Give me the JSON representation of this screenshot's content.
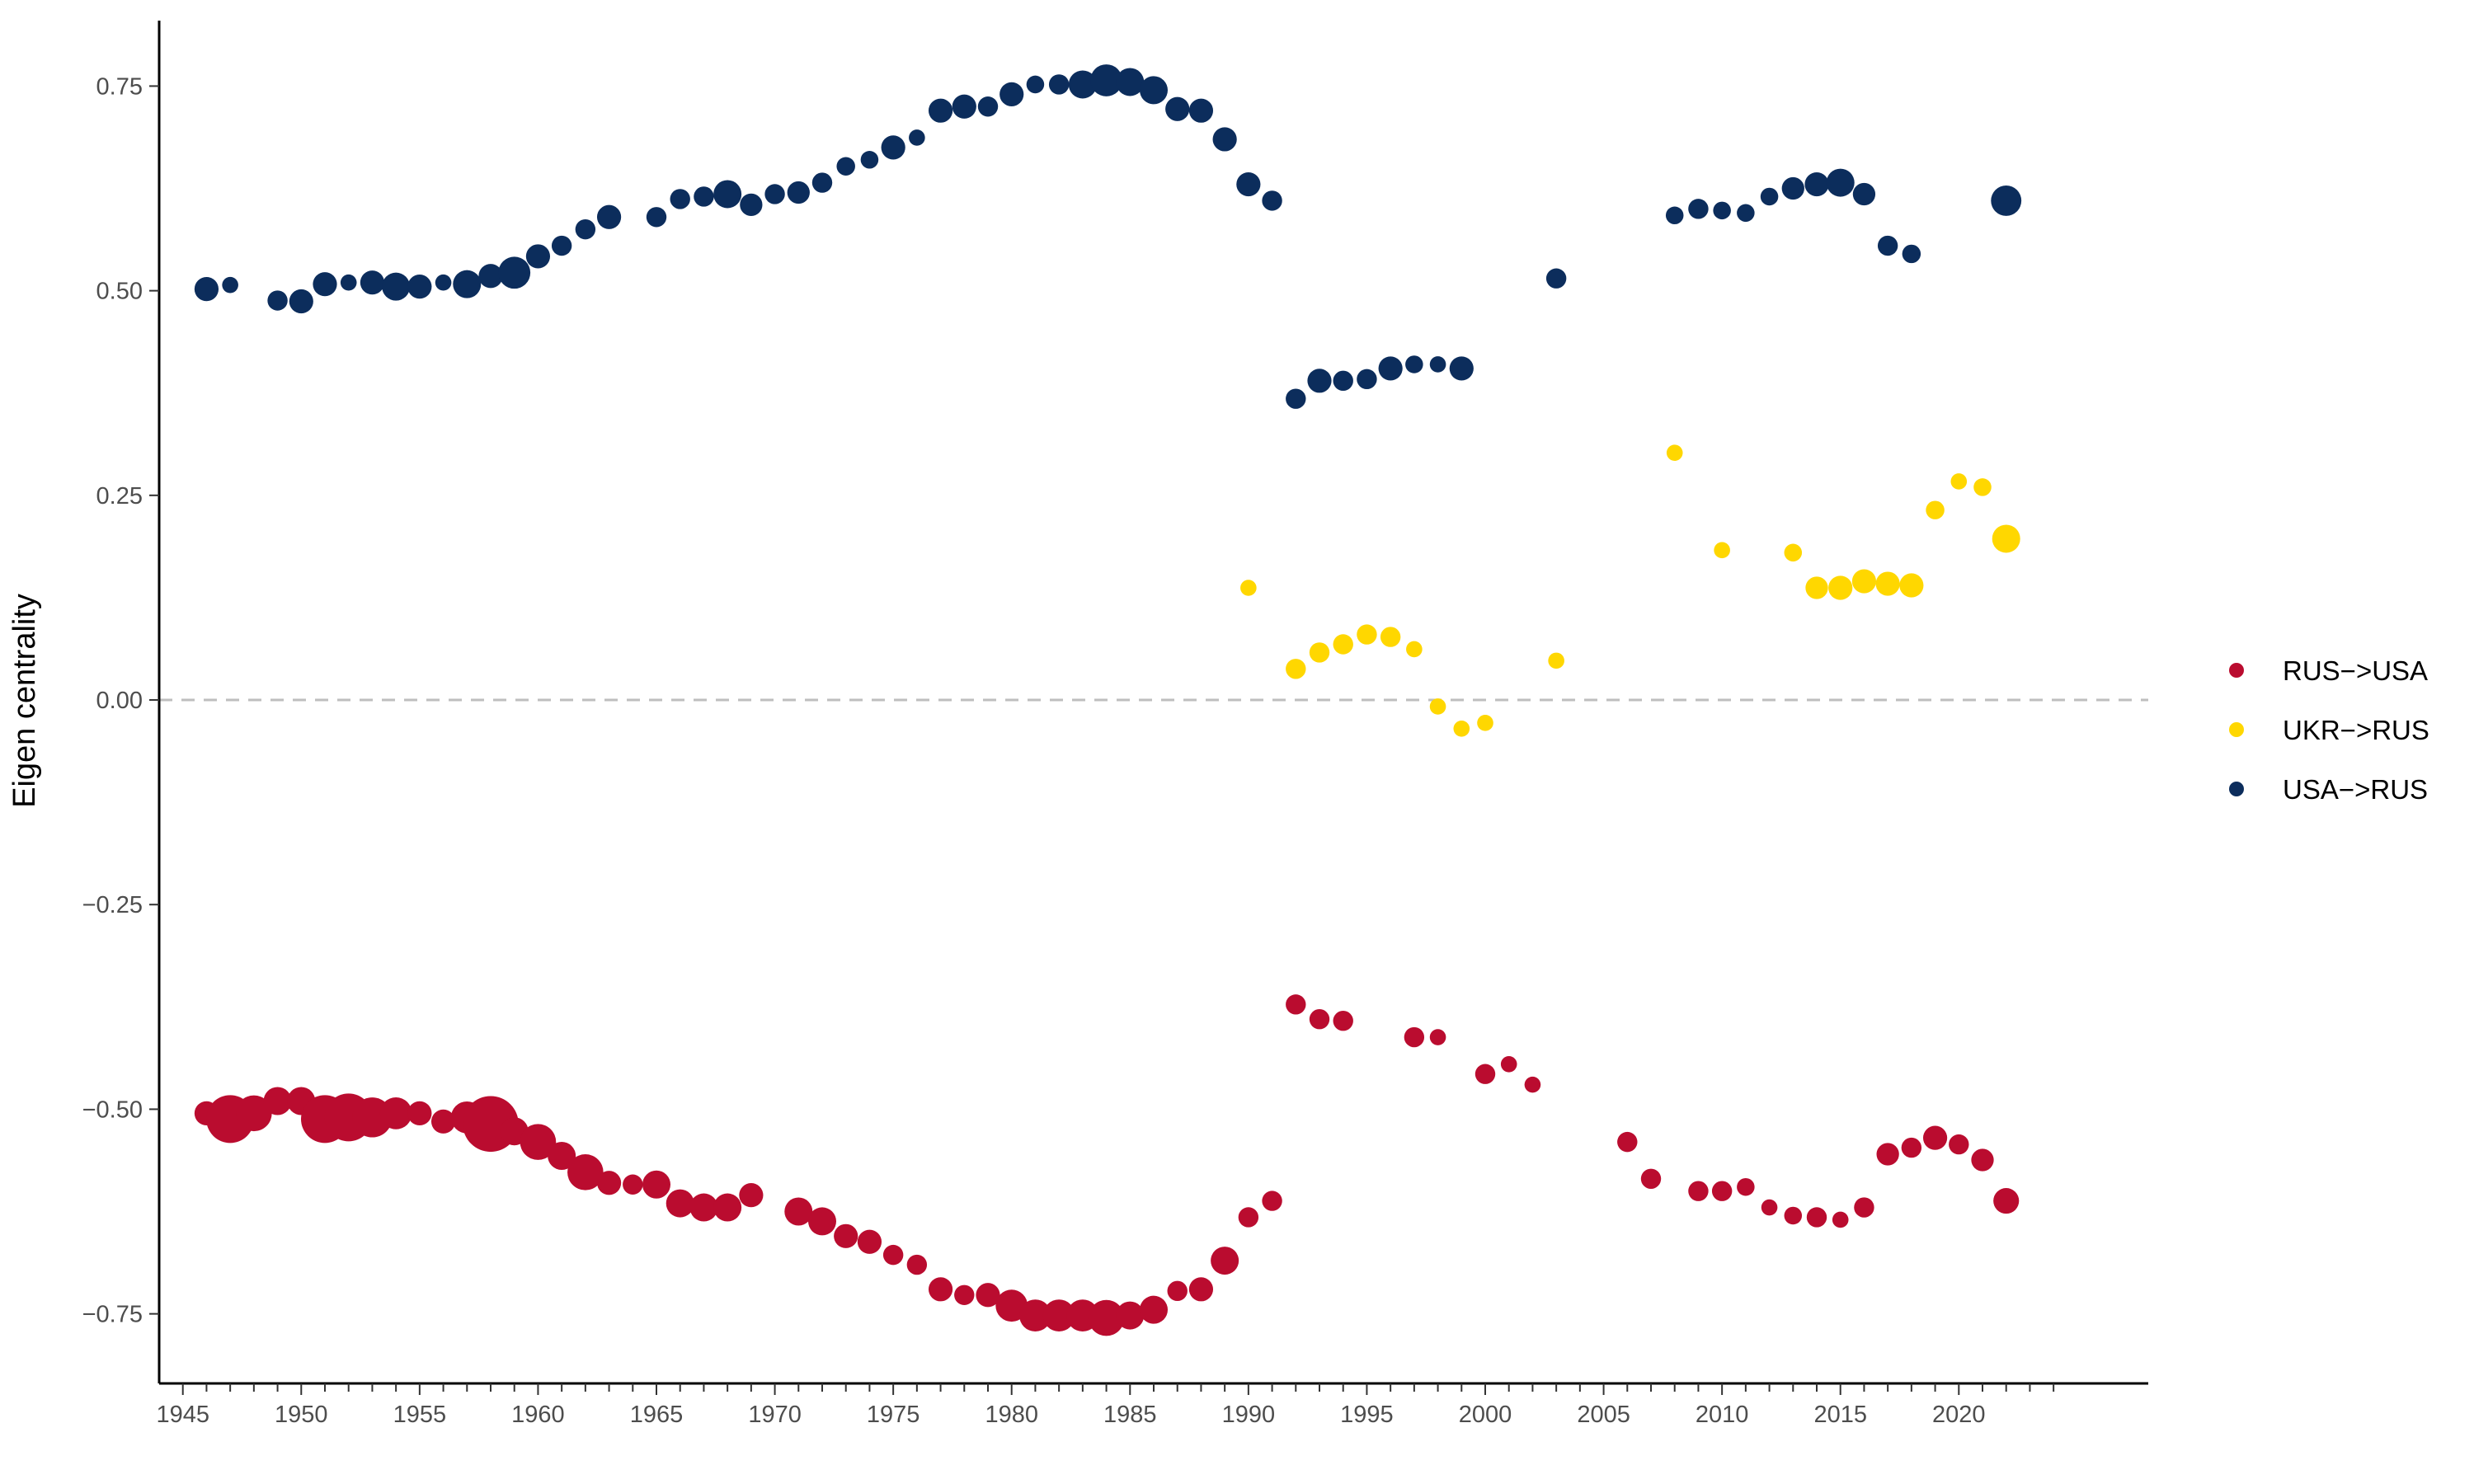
{
  "chart_data": {
    "type": "scatter",
    "title": "",
    "xlabel": "",
    "ylabel": "Eigen centrality",
    "xlim": [
      1944,
      2028
    ],
    "ylim": [
      -0.835,
      0.83
    ],
    "x_ticks": [
      1945,
      1950,
      1955,
      1960,
      1965,
      1970,
      1975,
      1980,
      1985,
      1990,
      1995,
      2000,
      2005,
      2010,
      2015,
      2020
    ],
    "x_ticks_minor": [
      1946,
      1947,
      1948,
      1949,
      1951,
      1952,
      1953,
      1954,
      1956,
      1957,
      1958,
      1959,
      1961,
      1962,
      1963,
      1964,
      1966,
      1967,
      1968,
      1969,
      1971,
      1972,
      1973,
      1974,
      1976,
      1977,
      1978,
      1979,
      1981,
      1982,
      1983,
      1984,
      1986,
      1987,
      1988,
      1989,
      1991,
      1992,
      1993,
      1994,
      1996,
      1997,
      1998,
      1999,
      2001,
      2002,
      2003,
      2004,
      2006,
      2007,
      2008,
      2009,
      2011,
      2012,
      2013,
      2014,
      2016,
      2017,
      2018,
      2019,
      2021,
      2022,
      2023,
      2024
    ],
    "y_ticks": [
      0.75,
      0.5,
      0.25,
      0.0,
      -0.25,
      -0.5,
      -0.75
    ],
    "y_tick_labels": [
      "0.75",
      "0.50",
      "0.25",
      "0.00",
      "−0.25",
      "−0.50",
      "−0.75"
    ],
    "reference_line": 0,
    "grid": false,
    "legend_position": "right",
    "point_size_encoding": "relative size value (unlabeled)",
    "series": [
      {
        "name": "RUS−>USA",
        "color": "#BA0C2F",
        "points": [
          [
            1946,
            -0.505,
            2
          ],
          [
            1947,
            -0.512,
            5
          ],
          [
            1948,
            -0.505,
            3.5
          ],
          [
            1949,
            -0.49,
            2.5
          ],
          [
            1950,
            -0.49,
            2.5
          ],
          [
            1951,
            -0.512,
            5
          ],
          [
            1952,
            -0.51,
            5
          ],
          [
            1953,
            -0.51,
            4
          ],
          [
            1954,
            -0.505,
            3
          ],
          [
            1955,
            -0.505,
            2
          ],
          [
            1956,
            -0.515,
            2
          ],
          [
            1957,
            -0.51,
            3
          ],
          [
            1958,
            -0.518,
            6
          ],
          [
            1959,
            -0.527,
            2.5
          ],
          [
            1960,
            -0.54,
            3.5
          ],
          [
            1961,
            -0.557,
            2.5
          ],
          [
            1962,
            -0.577,
            3.5
          ],
          [
            1963,
            -0.59,
            2
          ],
          [
            1964,
            -0.592,
            1.5
          ],
          [
            1965,
            -0.592,
            2.5
          ],
          [
            1966,
            -0.615,
            2.5
          ],
          [
            1967,
            -0.62,
            2.5
          ],
          [
            1968,
            -0.62,
            2.5
          ],
          [
            1969,
            -0.605,
            2
          ],
          [
            1971,
            -0.625,
            2.5
          ],
          [
            1972,
            -0.637,
            2.5
          ],
          [
            1973,
            -0.655,
            2
          ],
          [
            1974,
            -0.662,
            2
          ],
          [
            1975,
            -0.678,
            1.5
          ],
          [
            1976,
            -0.69,
            1.5
          ],
          [
            1977,
            -0.72,
            2
          ],
          [
            1978,
            -0.727,
            1.5
          ],
          [
            1979,
            -0.727,
            2
          ],
          [
            1980,
            -0.74,
            3
          ],
          [
            1981,
            -0.752,
            3
          ],
          [
            1982,
            -0.752,
            3
          ],
          [
            1983,
            -0.752,
            3
          ],
          [
            1984,
            -0.755,
            3.5
          ],
          [
            1985,
            -0.752,
            2.5
          ],
          [
            1986,
            -0.745,
            2.5
          ],
          [
            1987,
            -0.722,
            1.5
          ],
          [
            1988,
            -0.72,
            2
          ],
          [
            1989,
            -0.685,
            2.5
          ],
          [
            1990,
            -0.632,
            1.5
          ],
          [
            1991,
            -0.612,
            1.5
          ],
          [
            1992,
            -0.372,
            1.5
          ],
          [
            1993,
            -0.39,
            1.5
          ],
          [
            1994,
            -0.392,
            1.5
          ],
          [
            1997,
            -0.412,
            1.5
          ],
          [
            1998,
            -0.412,
            1
          ],
          [
            2000,
            -0.457,
            1.5
          ],
          [
            2001,
            -0.445,
            1
          ],
          [
            2002,
            -0.47,
            1
          ],
          [
            2006,
            -0.54,
            1.5
          ],
          [
            2007,
            -0.585,
            1.5
          ],
          [
            2009,
            -0.6,
            1.5
          ],
          [
            2010,
            -0.6,
            1.5
          ],
          [
            2011,
            -0.595,
            1.2
          ],
          [
            2012,
            -0.62,
            1
          ],
          [
            2013,
            -0.63,
            1.2
          ],
          [
            2014,
            -0.632,
            1.5
          ],
          [
            2015,
            -0.635,
            1
          ],
          [
            2016,
            -0.62,
            1.5
          ],
          [
            2017,
            -0.555,
            1.8
          ],
          [
            2018,
            -0.547,
            1.5
          ],
          [
            2019,
            -0.535,
            2
          ],
          [
            2020,
            -0.543,
            1.5
          ],
          [
            2021,
            -0.562,
            1.8
          ],
          [
            2022,
            -0.612,
            2.2
          ]
        ]
      },
      {
        "name": "UKR−>RUS",
        "color": "#FFD700",
        "points": [
          [
            1990,
            0.137,
            1
          ],
          [
            1992,
            0.038,
            1.5
          ],
          [
            1993,
            0.058,
            1.5
          ],
          [
            1994,
            0.068,
            1.5
          ],
          [
            1995,
            0.08,
            1.5
          ],
          [
            1996,
            0.077,
            1.5
          ],
          [
            1997,
            0.062,
            1
          ],
          [
            1998,
            -0.008,
            1
          ],
          [
            1999,
            -0.035,
            1
          ],
          [
            2000,
            -0.028,
            1
          ],
          [
            2003,
            0.048,
            1
          ],
          [
            2008,
            0.302,
            1
          ],
          [
            2010,
            0.183,
            1
          ],
          [
            2013,
            0.18,
            1.2
          ],
          [
            2014,
            0.137,
            1.8
          ],
          [
            2015,
            0.137,
            2
          ],
          [
            2016,
            0.145,
            2
          ],
          [
            2017,
            0.142,
            2
          ],
          [
            2018,
            0.14,
            2
          ],
          [
            2019,
            0.232,
            1.3
          ],
          [
            2020,
            0.267,
            1
          ],
          [
            2021,
            0.26,
            1.2
          ],
          [
            2022,
            0.197,
            2.5
          ]
        ]
      },
      {
        "name": "USA−>RUS",
        "color": "#0C2D5C",
        "points": [
          [
            1946,
            0.502,
            2
          ],
          [
            1947,
            0.507,
            1
          ],
          [
            1949,
            0.488,
            1.5
          ],
          [
            1950,
            0.487,
            2
          ],
          [
            1951,
            0.508,
            2
          ],
          [
            1952,
            0.51,
            1
          ],
          [
            1953,
            0.51,
            2
          ],
          [
            1954,
            0.505,
            2.5
          ],
          [
            1955,
            0.505,
            2
          ],
          [
            1956,
            0.51,
            1
          ],
          [
            1957,
            0.508,
            2.5
          ],
          [
            1958,
            0.518,
            2
          ],
          [
            1959,
            0.522,
            3
          ],
          [
            1960,
            0.542,
            2
          ],
          [
            1961,
            0.555,
            1.5
          ],
          [
            1962,
            0.575,
            1.5
          ],
          [
            1963,
            0.59,
            2
          ],
          [
            1965,
            0.59,
            1.5
          ],
          [
            1966,
            0.612,
            1.5
          ],
          [
            1967,
            0.615,
            1.5
          ],
          [
            1968,
            0.618,
            2.5
          ],
          [
            1969,
            0.605,
            1.8
          ],
          [
            1970,
            0.618,
            1.5
          ],
          [
            1971,
            0.62,
            1.8
          ],
          [
            1972,
            0.632,
            1.5
          ],
          [
            1973,
            0.652,
            1.3
          ],
          [
            1974,
            0.66,
            1.2
          ],
          [
            1975,
            0.675,
            2
          ],
          [
            1976,
            0.687,
            1
          ],
          [
            1977,
            0.72,
            2
          ],
          [
            1978,
            0.725,
            2
          ],
          [
            1979,
            0.725,
            1.5
          ],
          [
            1980,
            0.74,
            2
          ],
          [
            1981,
            0.752,
            1.2
          ],
          [
            1982,
            0.752,
            1.5
          ],
          [
            1983,
            0.752,
            2.5
          ],
          [
            1984,
            0.757,
            3
          ],
          [
            1985,
            0.755,
            2.5
          ],
          [
            1986,
            0.745,
            2.5
          ],
          [
            1987,
            0.722,
            2
          ],
          [
            1988,
            0.72,
            2
          ],
          [
            1989,
            0.685,
            2
          ],
          [
            1990,
            0.63,
            2
          ],
          [
            1991,
            0.61,
            1.5
          ],
          [
            1992,
            0.368,
            1.5
          ],
          [
            1993,
            0.39,
            2
          ],
          [
            1994,
            0.39,
            1.5
          ],
          [
            1995,
            0.392,
            1.5
          ],
          [
            1996,
            0.405,
            2
          ],
          [
            1997,
            0.41,
            1.2
          ],
          [
            1998,
            0.41,
            1
          ],
          [
            1999,
            0.405,
            2
          ],
          [
            2003,
            0.515,
            1.5
          ],
          [
            2008,
            0.592,
            1.2
          ],
          [
            2009,
            0.6,
            1.5
          ],
          [
            2010,
            0.598,
            1.2
          ],
          [
            2011,
            0.595,
            1.2
          ],
          [
            2012,
            0.615,
            1.2
          ],
          [
            2013,
            0.625,
            1.8
          ],
          [
            2014,
            0.63,
            2
          ],
          [
            2015,
            0.632,
            2.5
          ],
          [
            2016,
            0.618,
            1.8
          ],
          [
            2017,
            0.555,
            1.5
          ],
          [
            2018,
            0.545,
            1.3
          ],
          [
            2022,
            0.61,
            2.8
          ]
        ]
      }
    ]
  }
}
